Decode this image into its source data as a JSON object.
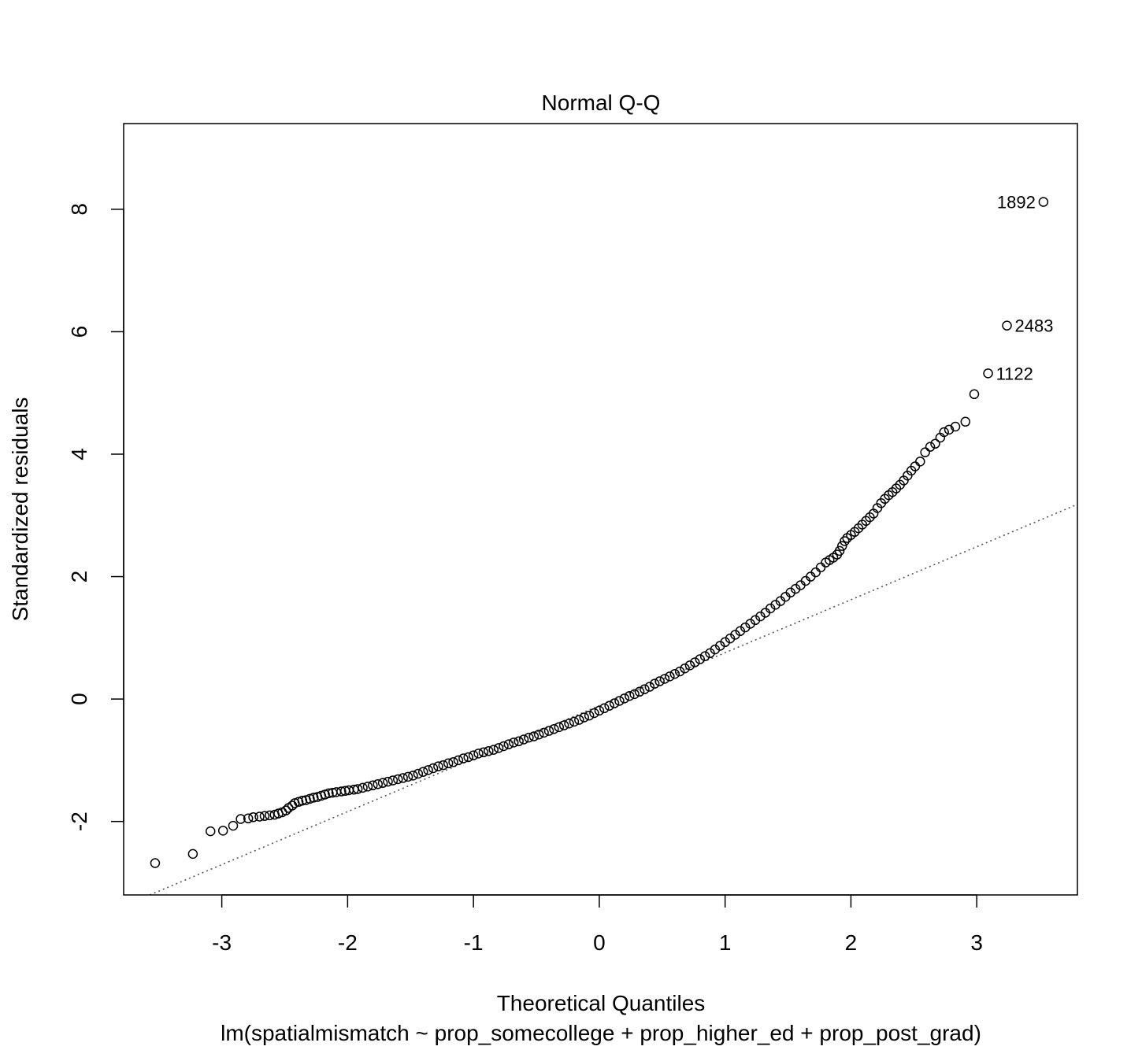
{
  "chart_data": {
    "type": "scatter",
    "title": "Normal Q-Q",
    "xlabel": "Theoretical Quantiles",
    "ylabel": "Standardized residuals",
    "subtitle": "lm(spatialmismatch ~ prop_somecollege + prop_higher_ed + prop_post_grad)",
    "xlim": [
      -3.78,
      3.8
    ],
    "ylim": [
      -3.2,
      9.4
    ],
    "x_ticks": [
      "-3",
      "-2",
      "-1",
      "0",
      "1",
      "2",
      "3"
    ],
    "x_tick_values": [
      -3,
      -2,
      -1,
      0,
      1,
      2,
      3
    ],
    "y_ticks": [
      "-2",
      "0",
      "2",
      "4",
      "6",
      "8"
    ],
    "y_tick_values": [
      -2,
      0,
      2,
      4,
      6,
      8
    ],
    "grid": false,
    "reference_line": {
      "x": [
        -3.78,
        3.8
      ],
      "y": [
        -3.38,
        3.18
      ],
      "style": "dotted"
    },
    "labeled_points": [
      {
        "label": "1892",
        "x": 3.53,
        "y": 8.12
      },
      {
        "label": "2483",
        "x": 3.24,
        "y": 6.1
      },
      {
        "label": "1122",
        "x": 3.09,
        "y": 5.32
      }
    ],
    "points": [
      [
        -3.53,
        -2.68
      ],
      [
        -3.23,
        -2.53
      ],
      [
        -3.09,
        -2.16
      ],
      [
        -2.99,
        -2.15
      ],
      [
        -2.91,
        -2.07
      ],
      [
        -2.85,
        -1.96
      ],
      [
        -2.79,
        -1.95
      ],
      [
        -2.75,
        -1.93
      ],
      [
        -2.7,
        -1.92
      ],
      [
        -2.66,
        -1.91
      ],
      [
        -2.62,
        -1.9
      ],
      [
        -2.58,
        -1.89
      ],
      [
        -2.55,
        -1.87
      ],
      [
        -2.52,
        -1.85
      ],
      [
        -2.49,
        -1.82
      ],
      [
        -2.47,
        -1.78
      ],
      [
        -2.44,
        -1.74
      ],
      [
        -2.42,
        -1.7
      ],
      [
        -2.39,
        -1.68
      ],
      [
        -2.36,
        -1.66
      ],
      [
        -2.33,
        -1.65
      ],
      [
        -2.3,
        -1.63
      ],
      [
        -2.27,
        -1.61
      ],
      [
        -2.24,
        -1.6
      ],
      [
        -2.21,
        -1.58
      ],
      [
        -2.18,
        -1.56
      ],
      [
        -2.15,
        -1.54
      ],
      [
        -2.12,
        -1.53
      ],
      [
        -2.09,
        -1.52
      ],
      [
        -2.05,
        -1.51
      ],
      [
        -2.02,
        -1.5
      ],
      [
        -1.99,
        -1.49
      ],
      [
        -1.95,
        -1.48
      ],
      [
        -1.92,
        -1.47
      ],
      [
        -1.88,
        -1.45
      ],
      [
        -1.84,
        -1.43
      ],
      [
        -1.8,
        -1.41
      ],
      [
        -1.76,
        -1.39
      ],
      [
        -1.72,
        -1.37
      ],
      [
        -1.68,
        -1.35
      ],
      [
        -1.64,
        -1.33
      ],
      [
        -1.6,
        -1.31
      ],
      [
        -1.56,
        -1.29
      ],
      [
        -1.52,
        -1.27
      ],
      [
        -1.48,
        -1.25
      ],
      [
        -1.44,
        -1.22
      ],
      [
        -1.4,
        -1.19
      ],
      [
        -1.36,
        -1.16
      ],
      [
        -1.32,
        -1.13
      ],
      [
        -1.28,
        -1.1
      ],
      [
        -1.24,
        -1.08
      ],
      [
        -1.2,
        -1.05
      ],
      [
        -1.16,
        -1.03
      ],
      [
        -1.12,
        -1.0
      ],
      [
        -1.08,
        -0.97
      ],
      [
        -1.04,
        -0.95
      ],
      [
        -1.0,
        -0.92
      ],
      [
        -0.96,
        -0.89
      ],
      [
        -0.92,
        -0.87
      ],
      [
        -0.88,
        -0.85
      ],
      [
        -0.84,
        -0.83
      ],
      [
        -0.8,
        -0.8
      ],
      [
        -0.76,
        -0.77
      ],
      [
        -0.72,
        -0.74
      ],
      [
        -0.68,
        -0.71
      ],
      [
        -0.64,
        -0.69
      ],
      [
        -0.6,
        -0.66
      ],
      [
        -0.56,
        -0.63
      ],
      [
        -0.52,
        -0.61
      ],
      [
        -0.48,
        -0.58
      ],
      [
        -0.44,
        -0.55
      ],
      [
        -0.4,
        -0.52
      ],
      [
        -0.36,
        -0.49
      ],
      [
        -0.32,
        -0.46
      ],
      [
        -0.28,
        -0.43
      ],
      [
        -0.24,
        -0.4
      ],
      [
        -0.2,
        -0.37
      ],
      [
        -0.16,
        -0.34
      ],
      [
        -0.12,
        -0.3
      ],
      [
        -0.08,
        -0.27
      ],
      [
        -0.04,
        -0.23
      ],
      [
        0.0,
        -0.19
      ],
      [
        0.04,
        -0.15
      ],
      [
        0.08,
        -0.11
      ],
      [
        0.12,
        -0.07
      ],
      [
        0.16,
        -0.03
      ],
      [
        0.2,
        0.01
      ],
      [
        0.24,
        0.05
      ],
      [
        0.28,
        0.08
      ],
      [
        0.32,
        0.12
      ],
      [
        0.36,
        0.16
      ],
      [
        0.4,
        0.2
      ],
      [
        0.44,
        0.25
      ],
      [
        0.48,
        0.29
      ],
      [
        0.52,
        0.33
      ],
      [
        0.56,
        0.37
      ],
      [
        0.6,
        0.41
      ],
      [
        0.64,
        0.45
      ],
      [
        0.68,
        0.5
      ],
      [
        0.72,
        0.55
      ],
      [
        0.76,
        0.6
      ],
      [
        0.8,
        0.65
      ],
      [
        0.84,
        0.7
      ],
      [
        0.88,
        0.75
      ],
      [
        0.92,
        0.81
      ],
      [
        0.96,
        0.87
      ],
      [
        1.0,
        0.93
      ],
      [
        1.04,
        0.99
      ],
      [
        1.08,
        1.05
      ],
      [
        1.12,
        1.11
      ],
      [
        1.16,
        1.17
      ],
      [
        1.2,
        1.23
      ],
      [
        1.24,
        1.29
      ],
      [
        1.28,
        1.35
      ],
      [
        1.32,
        1.41
      ],
      [
        1.36,
        1.48
      ],
      [
        1.4,
        1.54
      ],
      [
        1.44,
        1.6
      ],
      [
        1.48,
        1.67
      ],
      [
        1.52,
        1.74
      ],
      [
        1.56,
        1.8
      ],
      [
        1.6,
        1.86
      ],
      [
        1.64,
        1.93
      ],
      [
        1.68,
        2.0
      ],
      [
        1.72,
        2.07
      ],
      [
        1.76,
        2.15
      ],
      [
        1.8,
        2.23
      ],
      [
        1.83,
        2.27
      ],
      [
        1.86,
        2.31
      ],
      [
        1.89,
        2.36
      ],
      [
        1.91,
        2.42
      ],
      [
        1.93,
        2.5
      ],
      [
        1.95,
        2.58
      ],
      [
        1.97,
        2.63
      ],
      [
        2.0,
        2.68
      ],
      [
        2.03,
        2.73
      ],
      [
        2.06,
        2.79
      ],
      [
        2.09,
        2.85
      ],
      [
        2.12,
        2.91
      ],
      [
        2.15,
        2.97
      ],
      [
        2.18,
        3.03
      ],
      [
        2.21,
        3.12
      ],
      [
        2.24,
        3.2
      ],
      [
        2.27,
        3.27
      ],
      [
        2.3,
        3.33
      ],
      [
        2.33,
        3.38
      ],
      [
        2.36,
        3.44
      ],
      [
        2.39,
        3.5
      ],
      [
        2.42,
        3.57
      ],
      [
        2.45,
        3.65
      ],
      [
        2.48,
        3.73
      ],
      [
        2.51,
        3.8
      ],
      [
        2.55,
        3.88
      ],
      [
        2.59,
        4.03
      ],
      [
        2.63,
        4.12
      ],
      [
        2.67,
        4.17
      ],
      [
        2.71,
        4.27
      ],
      [
        2.74,
        4.36
      ],
      [
        2.78,
        4.4
      ],
      [
        2.83,
        4.45
      ],
      [
        2.91,
        4.53
      ],
      [
        2.98,
        4.98
      ],
      [
        3.09,
        5.32
      ],
      [
        3.24,
        6.1
      ],
      [
        3.53,
        8.12
      ]
    ]
  }
}
